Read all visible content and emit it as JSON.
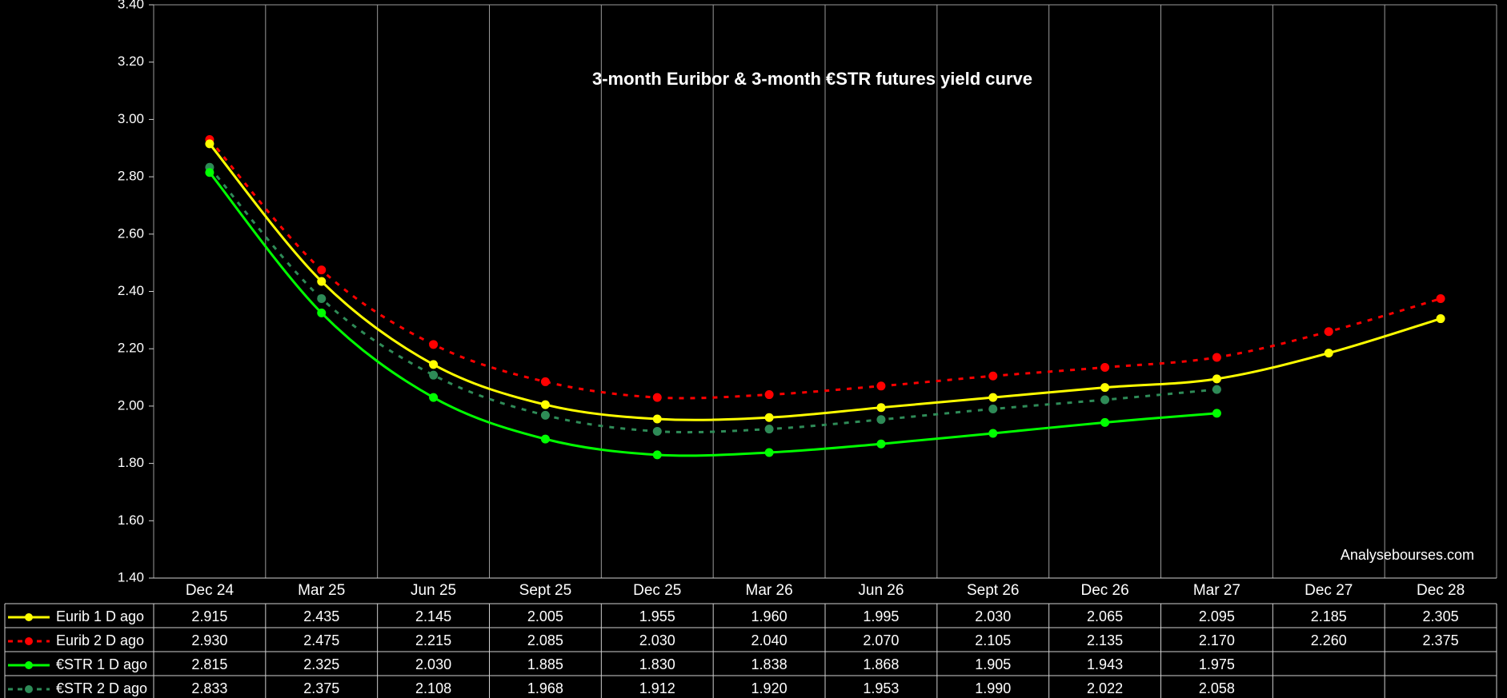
{
  "chart_data": {
    "type": "line",
    "title": "3-month Euribor & 3-month €STR futures yield curve",
    "credit": "Analysebourses.com",
    "categories": [
      "Dec 24",
      "Mar 25",
      "Jun 25",
      "Sept 25",
      "Dec 25",
      "Mar 26",
      "Jun 26",
      "Sept 26",
      "Dec 26",
      "Mar 27",
      "Dec 27",
      "Dec 28"
    ],
    "ylim": [
      1.4,
      3.4
    ],
    "yticks": [
      "1.40",
      "1.60",
      "1.80",
      "2.00",
      "2.20",
      "2.40",
      "2.60",
      "2.80",
      "3.00",
      "3.20",
      "3.40"
    ],
    "grid": true,
    "series": [
      {
        "name": "Eurib 1 D ago",
        "color": "#ffff00",
        "dashed": false,
        "values": [
          2.915,
          2.435,
          2.145,
          2.005,
          1.955,
          1.96,
          1.995,
          2.03,
          2.065,
          2.095,
          2.185,
          2.305
        ],
        "labels": [
          "2.915",
          "2.435",
          "2.145",
          "2.005",
          "1.955",
          "1.960",
          "1.995",
          "2.030",
          "2.065",
          "2.095",
          "2.185",
          "2.305"
        ]
      },
      {
        "name": "Eurib 2 D ago",
        "color": "#ff0000",
        "dashed": true,
        "values": [
          2.93,
          2.475,
          2.215,
          2.085,
          2.03,
          2.04,
          2.07,
          2.105,
          2.135,
          2.17,
          2.26,
          2.375
        ],
        "labels": [
          "2.930",
          "2.475",
          "2.215",
          "2.085",
          "2.030",
          "2.040",
          "2.070",
          "2.105",
          "2.135",
          "2.170",
          "2.260",
          "2.375"
        ]
      },
      {
        "name": "€STR 1 D ago",
        "color": "#00ff00",
        "dashed": false,
        "values": [
          2.815,
          2.325,
          2.03,
          1.885,
          1.83,
          1.838,
          1.868,
          1.905,
          1.943,
          1.975,
          null,
          null
        ],
        "labels": [
          "2.815",
          "2.325",
          "2.030",
          "1.885",
          "1.830",
          "1.838",
          "1.868",
          "1.905",
          "1.943",
          "1.975",
          "",
          ""
        ]
      },
      {
        "name": "€STR 2 D ago",
        "color": "#2e8b57",
        "dashed": true,
        "values": [
          2.833,
          2.375,
          2.108,
          1.968,
          1.912,
          1.92,
          1.953,
          1.99,
          2.022,
          2.058,
          null,
          null
        ],
        "labels": [
          "2.833",
          "2.375",
          "2.108",
          "1.968",
          "1.912",
          "1.920",
          "1.953",
          "1.990",
          "2.022",
          "2.058",
          "",
          ""
        ]
      }
    ]
  }
}
